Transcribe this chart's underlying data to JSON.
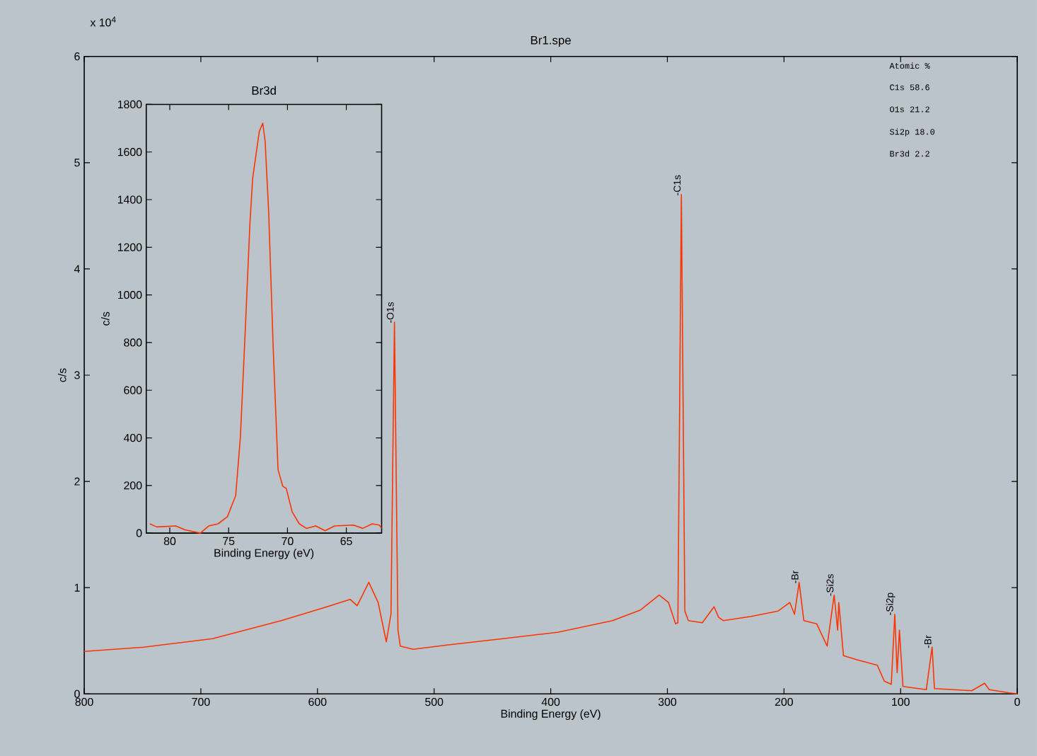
{
  "chart_data": [
    {
      "type": "line",
      "title": "Br1.spe",
      "xlabel": "Binding Energy (eV)",
      "ylabel": "c/s",
      "xlim": [
        800,
        0
      ],
      "xticks": [
        800,
        700,
        600,
        500,
        400,
        300,
        200,
        100,
        0
      ],
      "ylim": [
        0,
        6
      ],
      "yticks": [
        0,
        1,
        2,
        3,
        4,
        5,
        6
      ],
      "series": [
        {
          "color": "#ff3300",
          "x": [
            800,
            749,
            690,
            631,
            592,
            572,
            566,
            556,
            548,
            541,
            537,
            534,
            531,
            529,
            518,
            489,
            441,
            394,
            347,
            323,
            307,
            299,
            293,
            291,
            288,
            285,
            282,
            270,
            260,
            256,
            252,
            228,
            205,
            195,
            191,
            187,
            183,
            172,
            163,
            157,
            154,
            153,
            149,
            137,
            120,
            114,
            108,
            105,
            103,
            101,
            98,
            78,
            73,
            71,
            39,
            28,
            24,
            7,
            0
          ],
          "values": [
            0.4,
            0.44,
            0.52,
            0.69,
            0.82,
            0.89,
            0.83,
            1.05,
            0.86,
            0.49,
            0.75,
            3.5,
            0.6,
            0.45,
            0.42,
            0.46,
            0.52,
            0.58,
            0.69,
            0.79,
            0.93,
            0.86,
            0.66,
            0.67,
            4.7,
            0.78,
            0.69,
            0.67,
            0.82,
            0.72,
            0.69,
            0.73,
            0.78,
            0.86,
            0.75,
            1.05,
            0.69,
            0.66,
            0.45,
            0.93,
            0.6,
            0.86,
            0.36,
            0.32,
            0.27,
            0.12,
            0.09,
            0.75,
            0.2,
            0.6,
            0.07,
            0.04,
            0.44,
            0.05,
            0.03,
            0.1,
            0.04,
            0.01,
            0
          ]
        }
      ],
      "annotations": [
        "x 10$^{4}$",
        "Atomic %",
        "C1s   58.6",
        "O1s   21.2",
        "Si2p  18.0",
        "Br3d   2.2",
        {
          "text": "-O1s",
          "x": 534,
          "y": 3.5
        },
        {
          "text": "-C1s",
          "x": 288,
          "y": 4.7
        },
        {
          "text": "-Br",
          "x": 187,
          "y": 1.05
        },
        {
          "text": "-Si2s",
          "x": 157,
          "y": 0.93
        },
        {
          "text": "-Si2p",
          "x": 105,
          "y": 0.75
        },
        {
          "text": "-Br",
          "x": 73,
          "y": 0.44
        }
      ]
    },
    {
      "type": "line",
      "title": "Br3d",
      "xlabel": "Binding Energy (eV)",
      "ylabel": "c/s",
      "xlim": [
        82,
        62
      ],
      "xticks": [
        80,
        75,
        70,
        65
      ],
      "ylim": [
        0,
        1800
      ],
      "yticks": [
        0,
        200,
        400,
        600,
        800,
        1000,
        1200,
        1400,
        1600,
        1800
      ],
      "series": [
        {
          "color": "#ff3300",
          "x": [
            81.7,
            81.1,
            79.5,
            78.7,
            77.4,
            76.7,
            75.9,
            75.1,
            74.4,
            74.0,
            73.6,
            73.2,
            72.96,
            72.4,
            72.1,
            71.9,
            71.6,
            71.2,
            70.8,
            70.4,
            70.1,
            69.6,
            69.0,
            68.4,
            67.6,
            66.8,
            66.0,
            64.4,
            63.6,
            62.8,
            62.2,
            62.0
          ],
          "values": [
            39,
            26,
            30,
            14,
            0,
            30,
            39,
            69,
            158,
            404,
            838,
            1291,
            1488,
            1685,
            1721,
            1646,
            1350,
            759,
            266,
            197,
            187,
            89,
            39,
            20,
            30,
            10,
            30,
            34,
            20,
            39,
            34,
            20
          ]
        }
      ]
    }
  ]
}
